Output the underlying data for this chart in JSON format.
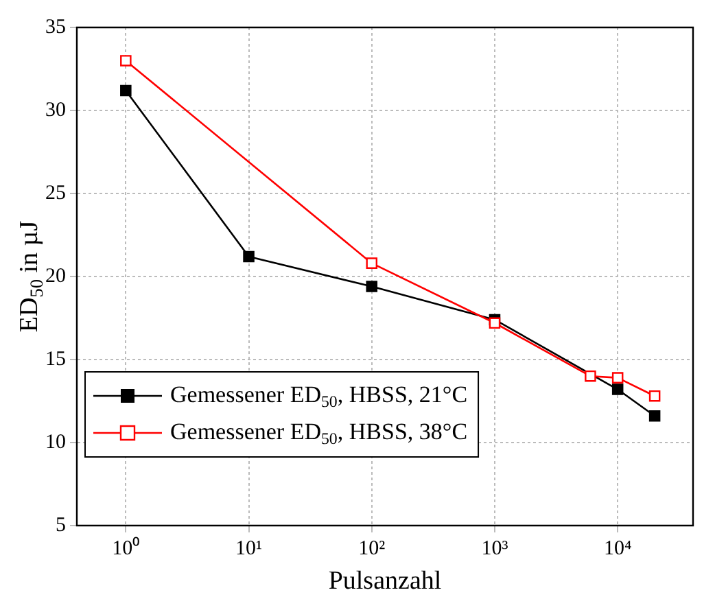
{
  "chart_data": {
    "type": "line",
    "xlabel": "Pulsanzahl",
    "ylabel": "ED$_{50}$ in µJ",
    "log": "x",
    "grid": true,
    "legend": "bottom left",
    "marker": "square",
    "line_style": "solid",
    "xlim": [
      0.4,
      41000
    ],
    "xticks": [
      {
        "value": 1,
        "label": "10⁰"
      },
      {
        "value": 10,
        "label": "10¹"
      },
      {
        "value": 100,
        "label": "10²"
      },
      {
        "value": 1000,
        "label": "10³"
      },
      {
        "value": 10000,
        "label": "10⁴"
      }
    ],
    "ylim": [
      5,
      35
    ],
    "yticks": [
      5,
      10,
      15,
      20,
      25,
      30,
      35
    ],
    "series": [
      {
        "name": "Gemessener ED$_{50}$, HBSS, 21°C",
        "color": "#000000",
        "x": [
          1,
          10,
          100,
          1000,
          10000,
          20000
        ],
        "values": [
          31.2,
          21.2,
          19.4,
          17.4,
          13.2,
          11.6
        ]
      },
      {
        "name": "Gemessener ED$_{50}$, HBSS, 38°C",
        "color": "#ff0000",
        "x": [
          1,
          100,
          1000,
          6000,
          10000,
          20000
        ],
        "values": [
          33.0,
          20.8,
          17.2,
          14.0,
          13.9,
          12.8
        ]
      }
    ]
  }
}
